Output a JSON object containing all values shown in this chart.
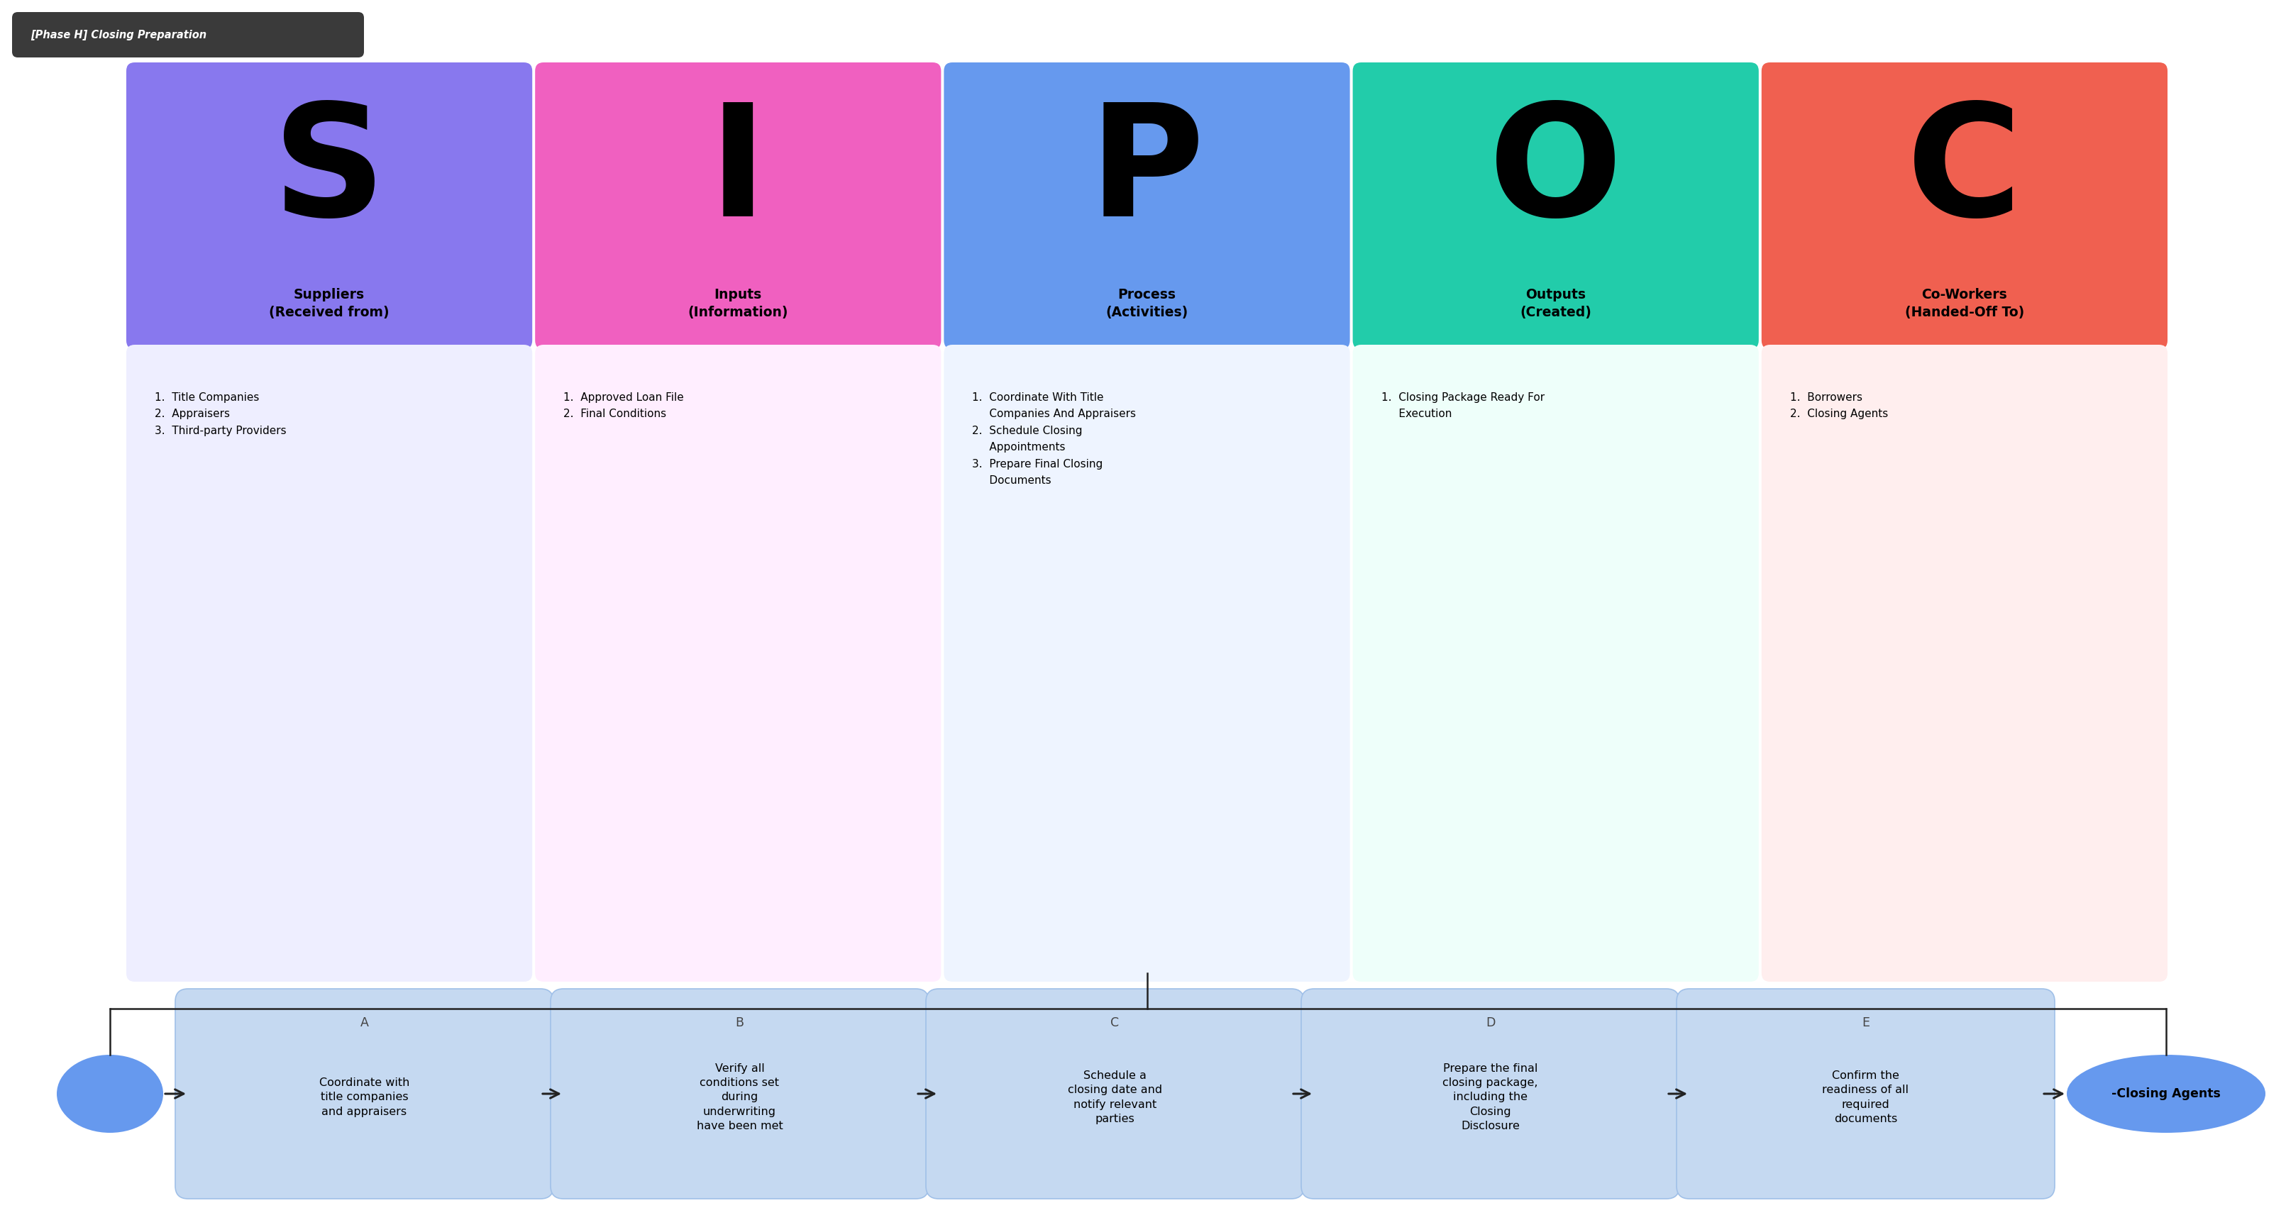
{
  "title": "[Phase H] Closing Preparation",
  "background_color": "#ffffff",
  "title_bg": "#3a3a3a",
  "sipoc_letters": [
    "S",
    "I",
    "P",
    "O",
    "C"
  ],
  "sipoc_header_colors": [
    "#8878ee",
    "#f060c0",
    "#6699ee",
    "#22ccaa",
    "#f06050"
  ],
  "sipoc_body_colors": [
    "#eeeeff",
    "#ffeeff",
    "#eef4ff",
    "#eefffa",
    "#ffeeee"
  ],
  "sipoc_titles": [
    "Suppliers\n(Received from)",
    "Inputs\n(Information)",
    "Process\n(Activities)",
    "Outputs\n(Created)",
    "Co-Workers\n(Handed-Off To)"
  ],
  "sipoc_items": [
    "1.  Title Companies\n2.  Appraisers\n3.  Third-party Providers",
    "1.  Approved Loan File\n2.  Final Conditions",
    "1.  Coordinate With Title\n     Companies And Appraisers\n2.  Schedule Closing\n     Appointments\n3.  Prepare Final Closing\n     Documents",
    "1.  Closing Package Ready For\n     Execution",
    "1.  Borrowers\n2.  Closing Agents"
  ],
  "flow_box_color": "#c5d9f1",
  "flow_box_border": "#a0c0e8",
  "flow_oval_color": "#6699ee",
  "flow_oval_border": "#5588dd",
  "flow_steps": [
    {
      "label": "A",
      "text": "Coordinate with\ntitle companies\nand appraisers"
    },
    {
      "label": "B",
      "text": "Verify all\nconditions set\nduring\nunderwriting\nhave been met"
    },
    {
      "label": "C",
      "text": "Schedule a\nclosing date and\nnotify relevant\nparties"
    },
    {
      "label": "D",
      "text": "Prepare the final\nclosing package,\nincluding the\nClosing\nDisclosure"
    },
    {
      "label": "E",
      "text": "Confirm the\nreadiness of all\nrequired\ndocuments"
    }
  ],
  "flow_end_label": "-Closing Agents",
  "arrow_color": "#222222"
}
